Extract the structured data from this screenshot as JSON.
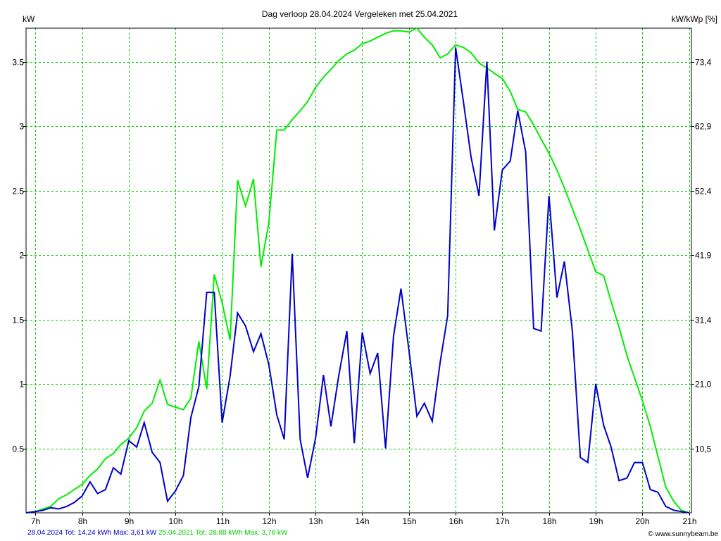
{
  "chart_data": {
    "type": "line",
    "title": "Dag  verloop 28.04.2024   Vergeleken met 25.04.2021",
    "ylabel_left": "kW",
    "ylabel_right": "kW/kWp [%]",
    "grid": true,
    "x_unit": "hour of day",
    "xlim": [
      6.8,
      21.05
    ],
    "ylim": [
      0,
      3.76
    ],
    "x_ticks": [
      7,
      8,
      9,
      10,
      11,
      12,
      13,
      14,
      15,
      16,
      17,
      18,
      19,
      20,
      21
    ],
    "x_tick_labels": [
      "7h",
      "8h",
      "9h",
      "10h",
      "11h",
      "12h",
      "13h",
      "14h",
      "15h",
      "16h",
      "17h",
      "18h",
      "19h",
      "20h",
      "21h"
    ],
    "y_left_ticks": [
      0.5,
      1,
      1.5,
      2,
      2.5,
      3,
      3.5
    ],
    "y_left_tick_labels": [
      "0.5",
      "1",
      "1.5",
      "2",
      "2.5",
      "3",
      "3.5"
    ],
    "y_right_ticks": [
      0.5,
      1,
      1.5,
      2,
      2.5,
      3,
      3.5
    ],
    "y_right_tick_labels": [
      "10,5",
      "21,0",
      "31,4",
      "41,9",
      "52,4",
      "62,9",
      "73,4"
    ],
    "series": [
      {
        "name": "28.04.2024",
        "color": "#0000cc",
        "legend": "28.04.2024 Tot: 14,24 kWh Max: 3,61 kW",
        "x": [
          6.8,
          7.0,
          7.17,
          7.33,
          7.5,
          7.67,
          7.83,
          8.0,
          8.17,
          8.33,
          8.5,
          8.67,
          8.83,
          9.0,
          9.17,
          9.33,
          9.5,
          9.67,
          9.83,
          10.0,
          10.17,
          10.33,
          10.5,
          10.67,
          10.83,
          11.0,
          11.17,
          11.33,
          11.5,
          11.67,
          11.83,
          12.0,
          12.17,
          12.33,
          12.5,
          12.67,
          12.83,
          13.0,
          13.17,
          13.33,
          13.5,
          13.67,
          13.83,
          14.0,
          14.17,
          14.33,
          14.5,
          14.67,
          14.83,
          15.0,
          15.17,
          15.33,
          15.5,
          15.67,
          15.83,
          16.0,
          16.17,
          16.33,
          16.5,
          16.67,
          16.83,
          17.0,
          17.17,
          17.33,
          17.5,
          17.67,
          17.83,
          18.0,
          18.17,
          18.33,
          18.5,
          18.67,
          18.83,
          19.0,
          19.17,
          19.33,
          19.5,
          19.67,
          19.83,
          20.0,
          20.17,
          20.33,
          20.5,
          20.67,
          20.83,
          21.0
        ],
        "y": [
          0.0,
          0.01,
          0.02,
          0.04,
          0.03,
          0.05,
          0.08,
          0.13,
          0.24,
          0.15,
          0.18,
          0.35,
          0.3,
          0.56,
          0.51,
          0.7,
          0.47,
          0.39,
          0.09,
          0.17,
          0.29,
          0.74,
          0.98,
          1.71,
          1.71,
          0.7,
          1.06,
          1.55,
          1.45,
          1.25,
          1.39,
          1.15,
          0.76,
          0.57,
          2.01,
          0.57,
          0.27,
          0.58,
          1.07,
          0.67,
          1.07,
          1.41,
          0.54,
          1.4,
          1.08,
          1.24,
          0.5,
          1.37,
          1.74,
          1.26,
          0.75,
          0.85,
          0.71,
          1.17,
          1.53,
          3.61,
          3.18,
          2.76,
          2.46,
          3.5,
          2.19,
          2.66,
          2.73,
          3.12,
          2.8,
          1.43,
          1.41,
          2.46,
          1.67,
          1.95,
          1.41,
          0.43,
          0.39,
          1.0,
          0.68,
          0.51,
          0.25,
          0.27,
          0.39,
          0.39,
          0.18,
          0.16,
          0.05,
          0.02,
          0.01,
          0.0
        ]
      },
      {
        "name": "25.04.2021",
        "color": "#00ee00",
        "legend": "25.04.2021 Tot: 28,88 kWh Max: 3,76 kW",
        "x": [
          6.8,
          7.0,
          7.17,
          7.33,
          7.5,
          7.67,
          7.83,
          8.0,
          8.17,
          8.33,
          8.5,
          8.67,
          8.83,
          9.0,
          9.17,
          9.33,
          9.5,
          9.67,
          9.83,
          10.0,
          10.17,
          10.33,
          10.5,
          10.67,
          10.83,
          11.0,
          11.17,
          11.33,
          11.5,
          11.67,
          11.83,
          12.0,
          12.17,
          12.33,
          12.5,
          12.67,
          12.83,
          13.0,
          13.17,
          13.33,
          13.5,
          13.67,
          13.83,
          14.0,
          14.17,
          14.33,
          14.5,
          14.67,
          14.83,
          15.0,
          15.17,
          15.33,
          15.5,
          15.67,
          15.83,
          16.0,
          16.17,
          16.33,
          16.5,
          16.67,
          16.83,
          17.0,
          17.17,
          17.33,
          17.5,
          17.67,
          17.83,
          18.0,
          18.17,
          18.33,
          18.5,
          18.67,
          18.83,
          19.0,
          19.17,
          19.33,
          19.5,
          19.67,
          19.83,
          20.0,
          20.17,
          20.33,
          20.5,
          20.67,
          20.83,
          21.0
        ],
        "y": [
          0.0,
          0.01,
          0.03,
          0.05,
          0.11,
          0.14,
          0.18,
          0.22,
          0.29,
          0.34,
          0.42,
          0.46,
          0.53,
          0.58,
          0.66,
          0.79,
          0.85,
          1.03,
          0.84,
          0.82,
          0.8,
          0.89,
          1.33,
          0.96,
          1.85,
          1.63,
          1.34,
          2.58,
          2.38,
          2.59,
          1.91,
          2.25,
          2.97,
          2.97,
          3.05,
          3.12,
          3.19,
          3.3,
          3.38,
          3.44,
          3.51,
          3.56,
          3.59,
          3.64,
          3.66,
          3.69,
          3.72,
          3.74,
          3.74,
          3.73,
          3.76,
          3.69,
          3.63,
          3.53,
          3.56,
          3.63,
          3.61,
          3.57,
          3.49,
          3.45,
          3.41,
          3.37,
          3.27,
          3.13,
          3.11,
          3.01,
          2.9,
          2.79,
          2.66,
          2.52,
          2.36,
          2.2,
          2.04,
          1.87,
          1.84,
          1.64,
          1.44,
          1.22,
          1.05,
          0.87,
          0.67,
          0.44,
          0.2,
          0.09,
          0.02,
          0.0
        ]
      }
    ]
  },
  "footer": {
    "series1": "28.04.2024 Tot: 14,24 kWh Max: 3,61 kW",
    "series2": "25.04.2021 Tot: 28,88 kWh Max: 3,76 kW",
    "credit": "© www.sunnybeam.be"
  }
}
